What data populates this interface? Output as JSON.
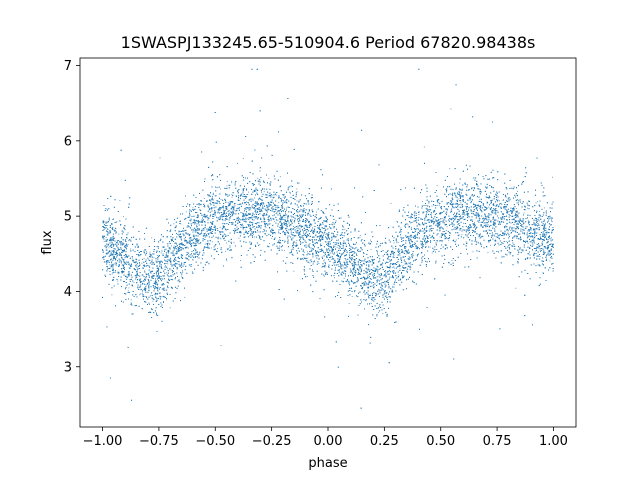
{
  "chart_data": {
    "type": "scatter",
    "title": "1SWASPJ133245.65-510904.6 Period 67820.98438s",
    "xlabel": "phase",
    "ylabel": "flux",
    "xlim": [
      -1.1,
      1.1
    ],
    "ylim": [
      2.2,
      7.1
    ],
    "x_ticks": [
      -1.0,
      -0.75,
      -0.5,
      -0.25,
      0.0,
      0.25,
      0.5,
      0.75,
      1.0
    ],
    "x_tick_labels": [
      "−1.00",
      "−0.75",
      "−0.50",
      "−0.25",
      "0.00",
      "0.25",
      "0.50",
      "0.75",
      "1.00"
    ],
    "y_ticks": [
      3,
      4,
      5,
      6,
      7
    ],
    "y_tick_labels": [
      "3",
      "4",
      "5",
      "6",
      "7"
    ],
    "grid": false,
    "point_color": "#1f77b4",
    "series": [
      {
        "x": [
          -1.0,
          -0.95,
          -0.9,
          -0.85,
          -0.8,
          -0.75,
          -0.7,
          -0.65,
          -0.6,
          -0.55,
          -0.5,
          -0.45,
          -0.4,
          -0.35,
          -0.3,
          -0.25,
          -0.2,
          -0.15,
          -0.1,
          -0.05,
          0.0,
          0.05,
          0.1,
          0.15,
          0.2,
          0.25,
          0.3,
          0.35,
          0.4,
          0.45,
          0.5,
          0.55,
          0.6,
          0.65,
          0.7,
          0.75,
          0.8,
          0.85,
          0.9,
          0.95,
          1.0
        ],
        "y": [
          4.65,
          4.55,
          4.45,
          4.3,
          4.15,
          4.2,
          4.4,
          4.6,
          4.75,
          4.85,
          4.95,
          5.0,
          5.05,
          5.05,
          5.05,
          5.0,
          4.95,
          4.9,
          4.8,
          4.7,
          4.6,
          4.5,
          4.4,
          4.25,
          4.15,
          4.2,
          4.4,
          4.6,
          4.75,
          4.85,
          4.9,
          4.95,
          5.0,
          5.0,
          5.0,
          4.98,
          4.95,
          4.9,
          4.8,
          4.75,
          4.7
        ]
      }
    ]
  }
}
